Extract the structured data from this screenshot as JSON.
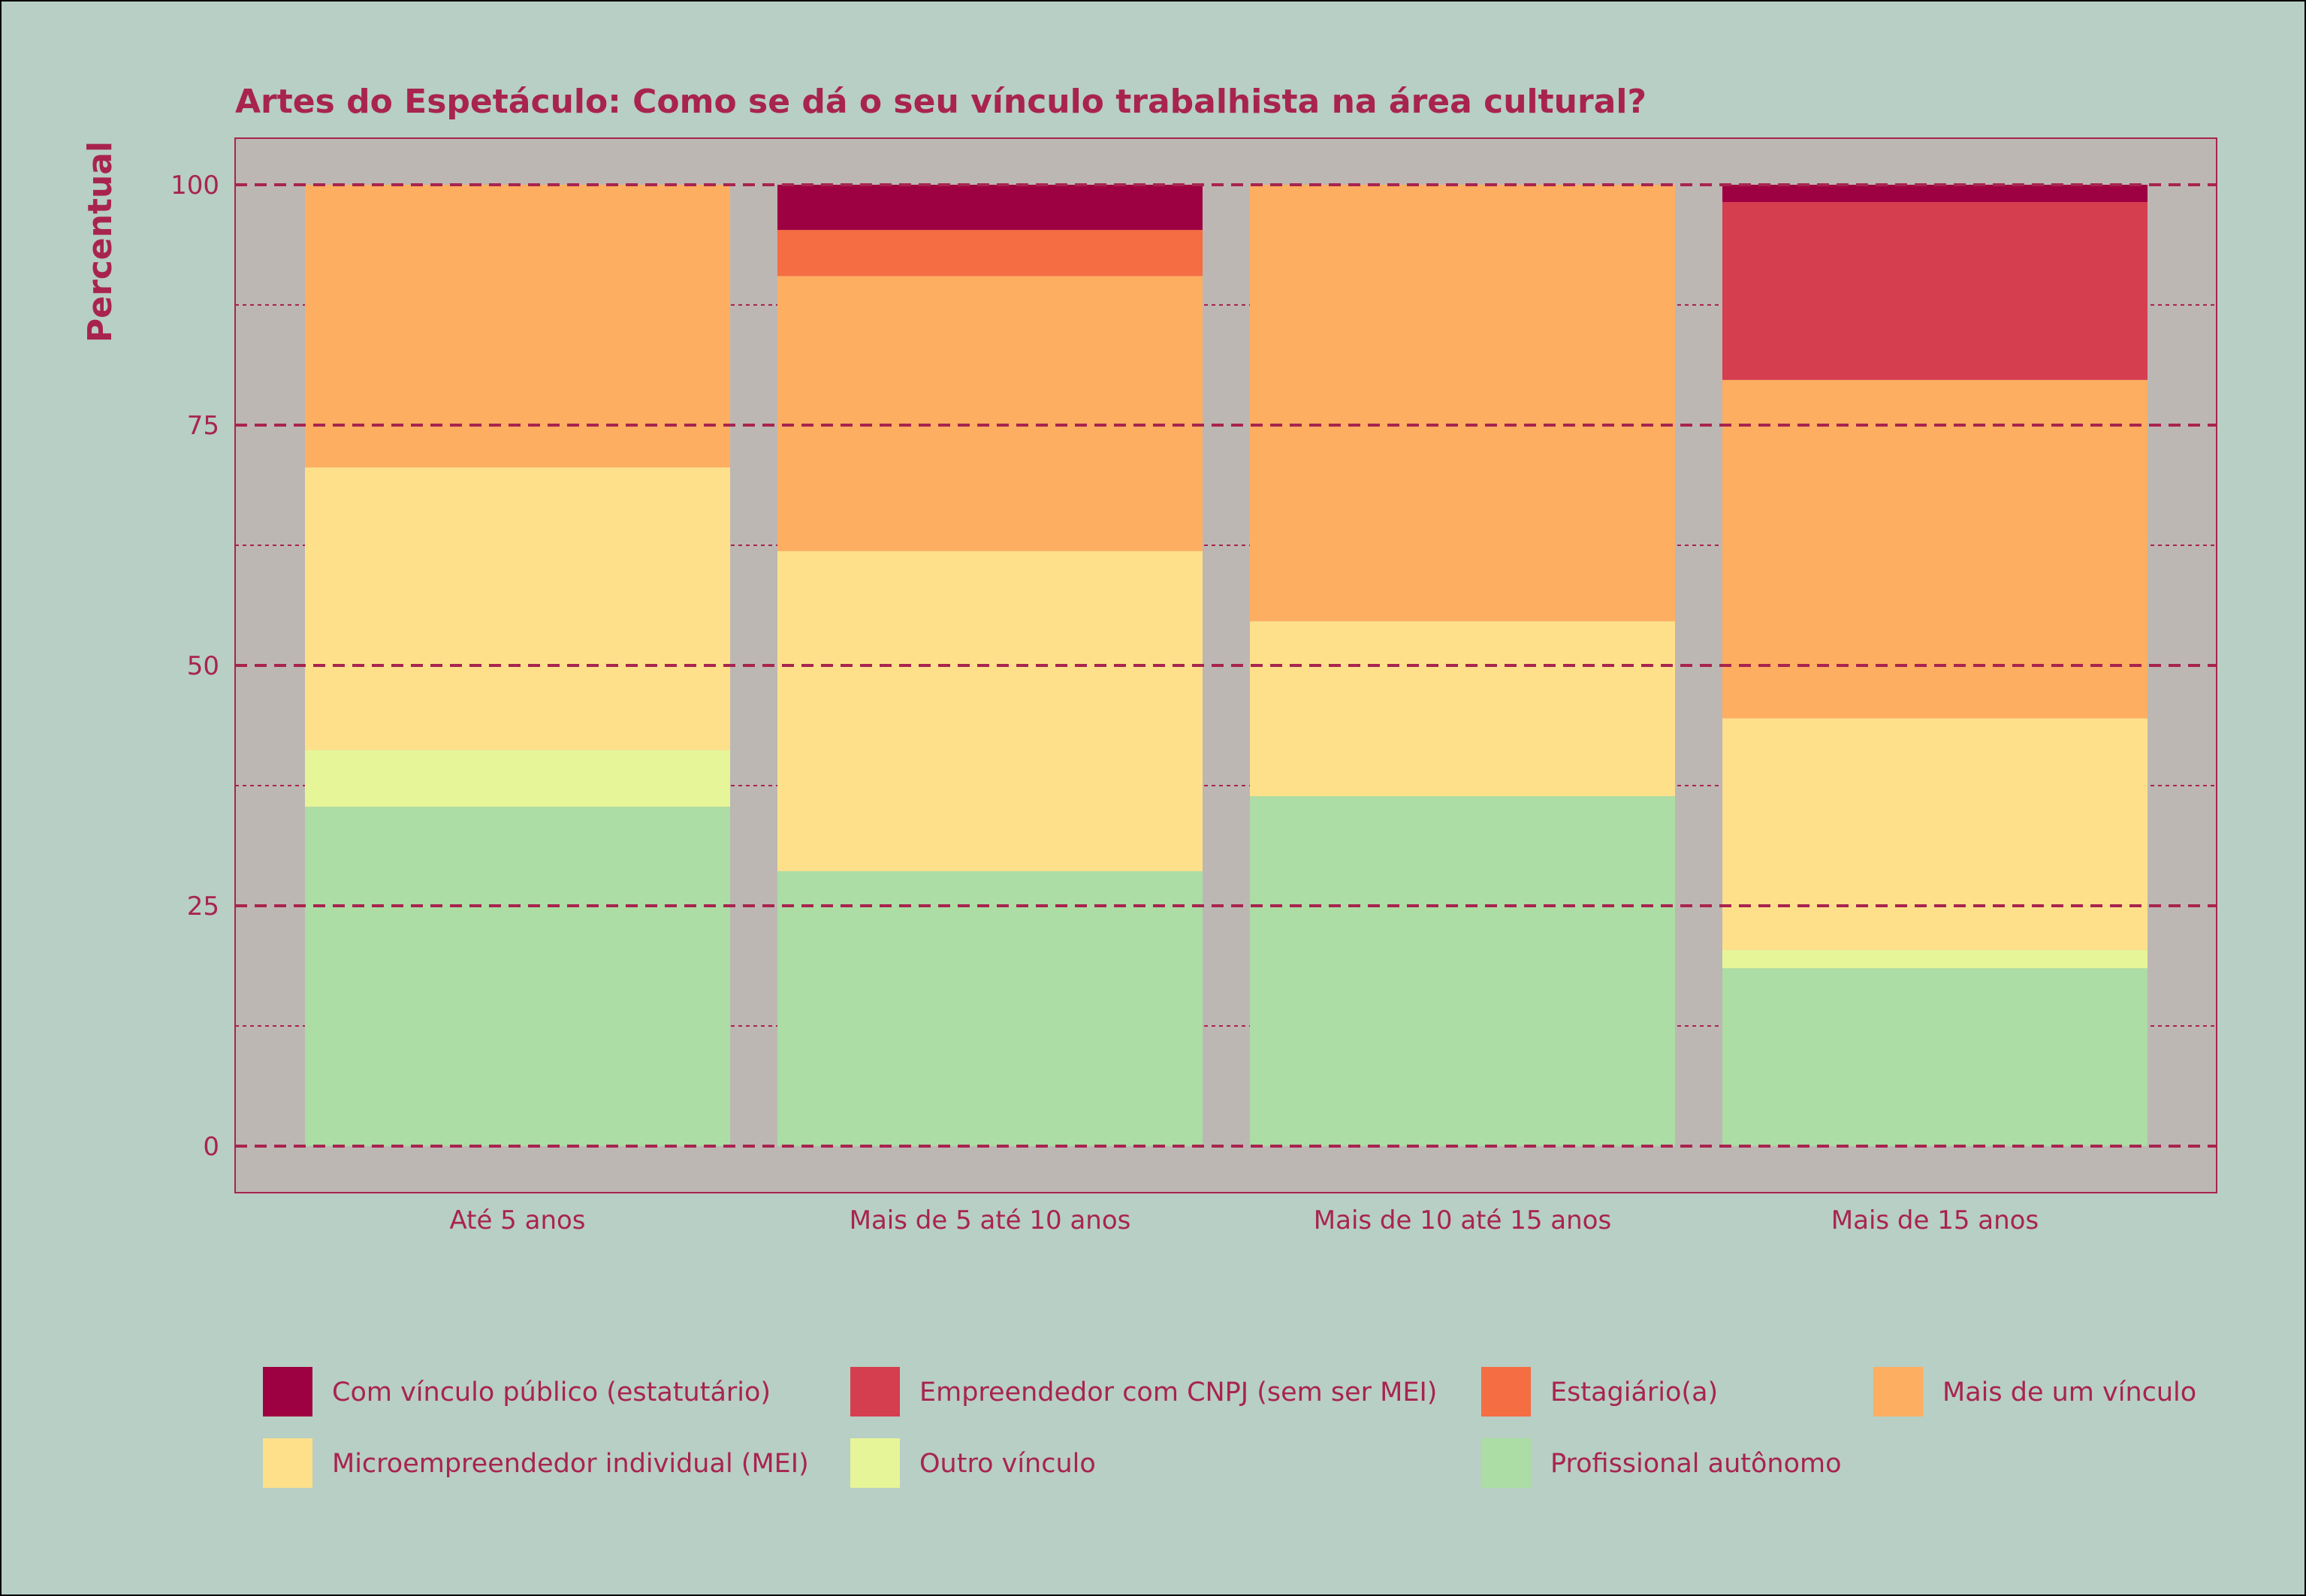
{
  "chart_data": {
    "type": "bar",
    "stacked": true,
    "title": "Artes do Espetáculo: Como se dá o seu vínculo trabalhista na área cultural?",
    "xlabel": "",
    "ylabel": "Percentual",
    "ylim": [
      0,
      100
    ],
    "yticks": [
      "0",
      "25",
      "50",
      "75",
      "100"
    ],
    "grid": "dashed horizontal major and minor",
    "legend_position": "bottom",
    "categories": [
      "Até 5 anos",
      "Mais de 5 até 10 anos",
      "Mais de 10 até 15 anos",
      "Mais de 15 anos"
    ],
    "series": [
      {
        "name": "Profissional autônomo",
        "color": "#abdda4",
        "values": [
          35.3,
          28.6,
          36.4,
          18.5
        ]
      },
      {
        "name": "Outro vínculo",
        "color": "#e6f598",
        "values": [
          5.9,
          0,
          0,
          1.9
        ]
      },
      {
        "name": "Microempreendedor individual (MEI)",
        "color": "#fee08b",
        "values": [
          29.4,
          33.3,
          18.2,
          24.1
        ]
      },
      {
        "name": "Mais de um vínculo",
        "color": "#fdae61",
        "values": [
          29.4,
          28.6,
          45.4,
          35.2
        ]
      },
      {
        "name": "Estagiário(a)",
        "color": "#f46d43",
        "values": [
          0,
          4.8,
          0,
          0
        ]
      },
      {
        "name": "Empreendedor com CNPJ (sem ser MEI)",
        "color": "#d53e4f",
        "values": [
          0,
          0,
          0,
          18.5
        ]
      },
      {
        "name": "Com vínculo público (estatutário)",
        "color": "#9e0142",
        "values": [
          0,
          4.7,
          0,
          1.8
        ]
      }
    ],
    "legend_order": [
      "Com vínculo público (estatutário)",
      "Empreendedor com CNPJ (sem ser MEI)",
      "Estagiário(a)",
      "Mais de um vínculo",
      "Microempreendedor individual (MEI)",
      "Outro vínculo",
      "Profissional autônomo"
    ],
    "colors": {
      "background": "#b7cfc4",
      "panel": "#bdb7b3",
      "text": "#a8244f",
      "grid": "#a8244f"
    }
  }
}
